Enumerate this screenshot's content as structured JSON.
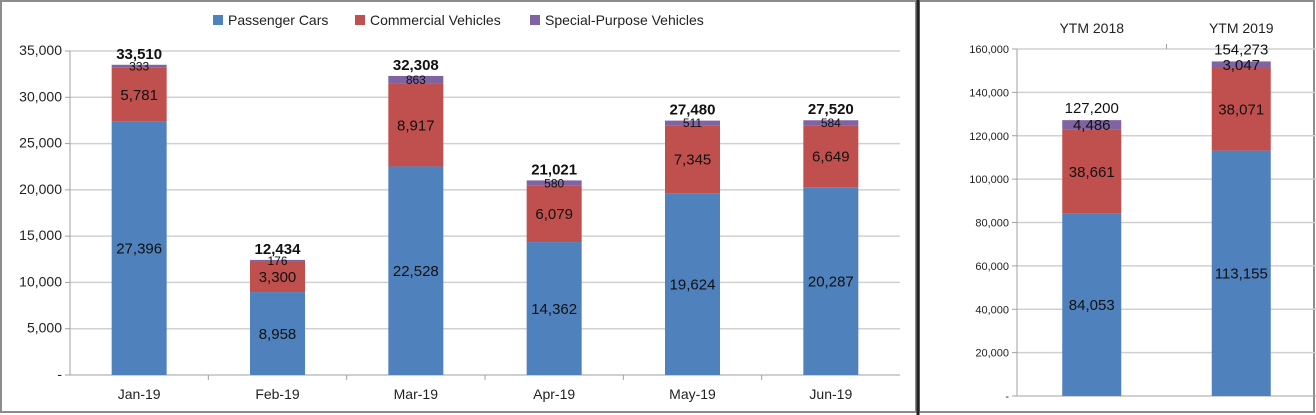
{
  "colors": {
    "passenger": "#4F81BD",
    "commercial": "#C0504D",
    "special": "#8064A2",
    "grid": "#D0D0D0",
    "axis": "#A0A0A0"
  },
  "chart_data": [
    {
      "type": "bar",
      "stacked": true,
      "title": "",
      "xlabel": "",
      "ylabel": "",
      "legend": {
        "position": "top",
        "entries": [
          "Passenger Cars",
          "Commercial Vehicles",
          "Special-Purpose Vehicles"
        ]
      },
      "categories": [
        "Jan-19",
        "Feb-19",
        "Mar-19",
        "Apr-19",
        "May-19",
        "Jun-19"
      ],
      "series": [
        {
          "name": "Passenger Cars",
          "values": [
            27396,
            8958,
            22528,
            14362,
            19624,
            20287
          ],
          "labels": [
            "27,396",
            "8,958",
            "22,528",
            "14,362",
            "19,624",
            "20,287"
          ]
        },
        {
          "name": "Commercial Vehicles",
          "values": [
            5781,
            3300,
            8917,
            6079,
            7345,
            6649
          ],
          "labels": [
            "5,781",
            "3,300",
            "8,917",
            "6,079",
            "7,345",
            "6,649"
          ]
        },
        {
          "name": "Special-Purpose Vehicles",
          "values": [
            333,
            176,
            863,
            580,
            511,
            584
          ],
          "labels": [
            "333",
            "176",
            "863",
            "580",
            "511",
            "584"
          ]
        }
      ],
      "totals": [
        33510,
        12434,
        32308,
        21021,
        27480,
        27520
      ],
      "total_labels": [
        "33,510",
        "12,434",
        "32,308",
        "21,021",
        "27,480",
        "27,520"
      ],
      "ylim": [
        0,
        35000
      ],
      "yticks": [
        0,
        5000,
        10000,
        15000,
        20000,
        25000,
        30000,
        35000
      ],
      "ytick_labels": [
        "-",
        "5,000",
        "10,000",
        "15,000",
        "20,000",
        "25,000",
        "30,000",
        "35,000"
      ],
      "grid": true
    },
    {
      "type": "bar",
      "stacked": true,
      "title": "",
      "xlabel": "",
      "ylabel": "",
      "categories": [
        "YTM 2018",
        "YTM 2019"
      ],
      "category_axis_position": "top",
      "series": [
        {
          "name": "Passenger Cars",
          "values": [
            84053,
            113155
          ],
          "labels": [
            "84,053",
            "113,155"
          ]
        },
        {
          "name": "Commercial Vehicles",
          "values": [
            38661,
            38071
          ],
          "labels": [
            "38,661",
            "38,071"
          ]
        },
        {
          "name": "Special-Purpose Vehicles",
          "values": [
            4486,
            3047
          ],
          "labels": [
            "4,486",
            "3,047"
          ]
        }
      ],
      "totals": [
        127200,
        154273
      ],
      "total_labels": [
        "127,200",
        "154,273"
      ],
      "ylim": [
        0,
        160000
      ],
      "yticks": [
        0,
        20000,
        40000,
        60000,
        80000,
        100000,
        120000,
        140000,
        160000
      ],
      "ytick_labels": [
        "-",
        "20,000",
        "40,000",
        "60,000",
        "80,000",
        "100,000",
        "120,000",
        "140,000",
        "160,000"
      ],
      "grid": true
    }
  ]
}
